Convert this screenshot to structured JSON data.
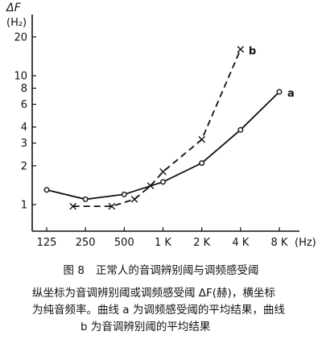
{
  "chart_data": {
    "type": "line",
    "ylabel_symbol": "ΔF",
    "ylabel_unit": "(H₂)",
    "xunit": "(Hz)",
    "yscale": "log",
    "xscale": "log2",
    "xlim_hz": [
      125,
      8000
    ],
    "ylim": [
      0.6,
      30
    ],
    "xticks": [
      {
        "hz": 125,
        "label": "125"
      },
      {
        "hz": 250,
        "label": "250"
      },
      {
        "hz": 500,
        "label": "500"
      },
      {
        "hz": 1000,
        "label": "1 K"
      },
      {
        "hz": 2000,
        "label": "2 K"
      },
      {
        "hz": 4000,
        "label": "4 K"
      },
      {
        "hz": 8000,
        "label": "8 K"
      }
    ],
    "yticks": [
      {
        "v": 1,
        "label": "1"
      },
      {
        "v": 2,
        "label": "2"
      },
      {
        "v": 3,
        "label": "3"
      },
      {
        "v": 4,
        "label": "4"
      },
      {
        "v": 6,
        "label": "6"
      },
      {
        "v": 8,
        "label": "8"
      },
      {
        "v": 10,
        "label": "10"
      },
      {
        "v": 20,
        "label": "20"
      }
    ],
    "series": [
      {
        "name": "a",
        "style": "solid",
        "marker": "circle",
        "points": [
          {
            "x": 125,
            "y": 1.3
          },
          {
            "x": 250,
            "y": 1.1
          },
          {
            "x": 500,
            "y": 1.2
          },
          {
            "x": 1000,
            "y": 1.5
          },
          {
            "x": 2000,
            "y": 2.1
          },
          {
            "x": 4000,
            "y": 3.8
          },
          {
            "x": 8000,
            "y": 7.5
          }
        ]
      },
      {
        "name": "b",
        "style": "dashed",
        "marker": "x",
        "points": [
          {
            "x": 200,
            "y": 0.97
          },
          {
            "x": 400,
            "y": 0.97
          },
          {
            "x": 600,
            "y": 1.1
          },
          {
            "x": 800,
            "y": 1.4
          },
          {
            "x": 1000,
            "y": 1.8
          },
          {
            "x": 2000,
            "y": 3.2
          },
          {
            "x": 4000,
            "y": 16
          }
        ]
      }
    ]
  },
  "caption": {
    "figure_label": "图 8",
    "title": "正常人的音调辨别阈与调频感受阈",
    "line2": "纵坐标为音调辨别阈或调频感受阈 ΔF(赫)，横坐标",
    "line3": "为纯音频率。曲线 a 为调频感受阈的平均结果，曲线",
    "line4": "b 为音调辨别阈的平均结果"
  }
}
